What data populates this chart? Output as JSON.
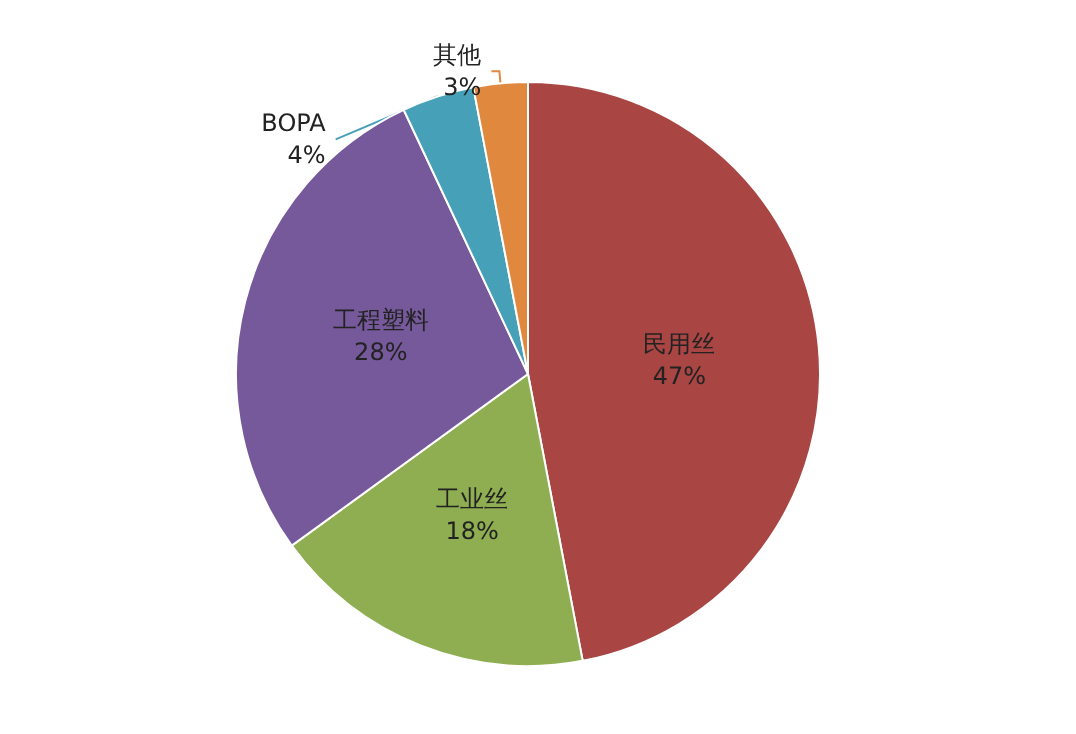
{
  "chart_data": {
    "type": "pie",
    "categories": [
      "民用丝",
      "工业丝",
      "工程塑料",
      "BOPA",
      "其他"
    ],
    "values": [
      47,
      18,
      28,
      4,
      3
    ],
    "value_labels": [
      "47%",
      "18%",
      "28%",
      "4%",
      "3%"
    ],
    "colors": [
      "#a94543",
      "#8fae52",
      "#76599b",
      "#46a0b7",
      "#e0883e"
    ],
    "legend": false
  }
}
